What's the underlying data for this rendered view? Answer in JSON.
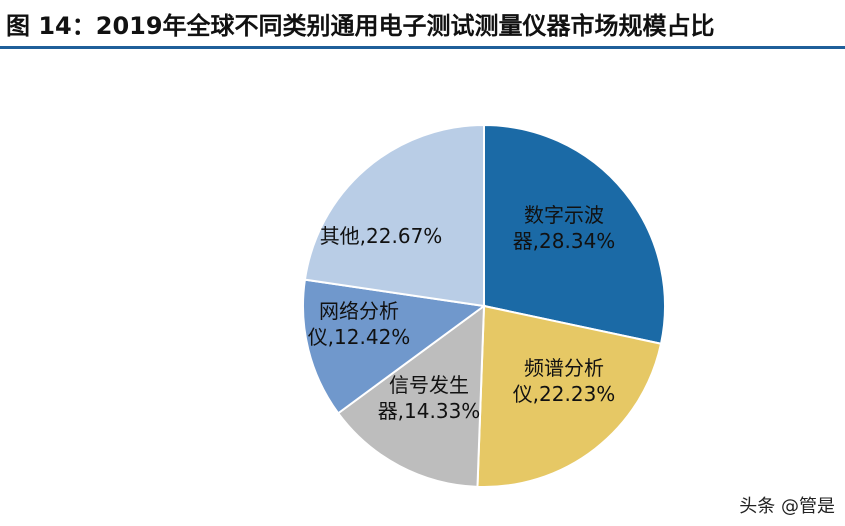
{
  "header": {
    "title": "图 14：2019年全球不同类别通用电子测试测量仪器市场规模占比"
  },
  "chart_data": {
    "type": "pie",
    "title": "",
    "start_angle_deg": 0,
    "direction": "clockwise",
    "slices": [
      {
        "label_line1": "数字示波",
        "label_line2": "器,28.34%",
        "name": "数字示波器",
        "value": 28.34,
        "color": "#1b6aa6",
        "edge": "#ffffff"
      },
      {
        "label_line1": "频谱分析",
        "label_line2": "仪,22.23%",
        "name": "频谱分析仪",
        "value": 22.23,
        "color": "#e6c865",
        "edge": "#ffffff"
      },
      {
        "label_line1": "信号发生",
        "label_line2": "器,14.33%",
        "name": "信号发生器",
        "value": 14.33,
        "color": "#bdbdbd",
        "edge": "#ffffff"
      },
      {
        "label_line1": "网络分析",
        "label_line2": "仪,12.42%",
        "name": "网络分析仪",
        "value": 12.42,
        "color": "#7098cc",
        "edge": "#ffffff"
      },
      {
        "label_line1": "其他,22.67%",
        "label_line2": "",
        "name": "其他",
        "value": 22.67,
        "color": "#b9cde6",
        "edge": "#ffffff"
      }
    ]
  },
  "watermark": {
    "text": "头条 @管是"
  }
}
